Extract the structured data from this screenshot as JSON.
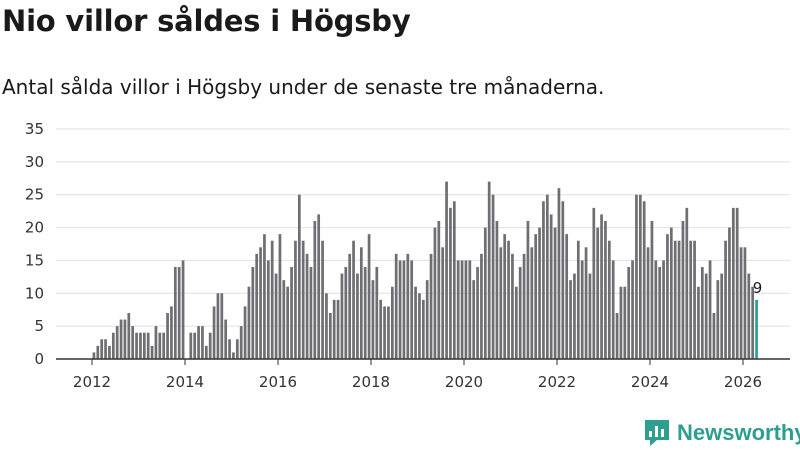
{
  "title": "Nio villor såldes i Högsby",
  "subtitle": "Antal sålda villor i Högsby under de senaste tre månaderna.",
  "brand": {
    "name": "Newsworthy",
    "icon": "newsworthy-logo-icon"
  },
  "colors": {
    "bar": "#6e6e73",
    "highlight": "#2e9e8f",
    "grid": "#e0e0e0",
    "axis": "#333333"
  },
  "chart_data": {
    "type": "bar",
    "title": "Nio villor såldes i Högsby",
    "xlabel": "",
    "ylabel": "",
    "ylim": [
      0,
      35
    ],
    "yticks": [
      "0",
      "5",
      "10",
      "15",
      "20",
      "25",
      "30",
      "35"
    ],
    "xticks": [
      "2012",
      "2014",
      "2016",
      "2018",
      "2020",
      "2022",
      "2024",
      "2026"
    ],
    "start": "2012-01",
    "interval": "month",
    "highlight_last": true,
    "annotation": "9",
    "values": [
      1,
      2,
      3,
      3,
      2,
      4,
      5,
      6,
      6,
      7,
      5,
      4,
      4,
      4,
      4,
      2,
      5,
      4,
      4,
      7,
      8,
      14,
      14,
      15,
      0,
      4,
      4,
      5,
      5,
      2,
      4,
      8,
      10,
      10,
      6,
      3,
      1,
      3,
      5,
      8,
      11,
      14,
      16,
      17,
      19,
      15,
      18,
      13,
      19,
      12,
      11,
      14,
      18,
      25,
      18,
      16,
      14,
      21,
      22,
      18,
      10,
      7,
      9,
      9,
      13,
      14,
      16,
      18,
      13,
      17,
      14,
      19,
      12,
      14,
      9,
      8,
      8,
      11,
      16,
      15,
      15,
      16,
      15,
      11,
      10,
      9,
      12,
      16,
      20,
      21,
      17,
      27,
      23,
      24,
      15,
      15,
      15,
      15,
      12,
      14,
      16,
      20,
      27,
      25,
      21,
      17,
      19,
      18,
      16,
      11,
      14,
      16,
      21,
      17,
      19,
      20,
      24,
      25,
      22,
      20,
      26,
      24,
      19,
      12,
      13,
      18,
      15,
      17,
      13,
      23,
      20,
      22,
      21,
      18,
      15,
      7,
      11,
      11,
      14,
      15,
      25,
      25,
      24,
      17,
      21,
      15,
      14,
      15,
      19,
      20,
      18,
      18,
      21,
      23,
      18,
      18,
      11,
      14,
      13,
      15,
      7,
      12,
      13,
      18,
      20,
      23,
      23,
      17,
      17,
      13,
      11,
      9
    ]
  }
}
